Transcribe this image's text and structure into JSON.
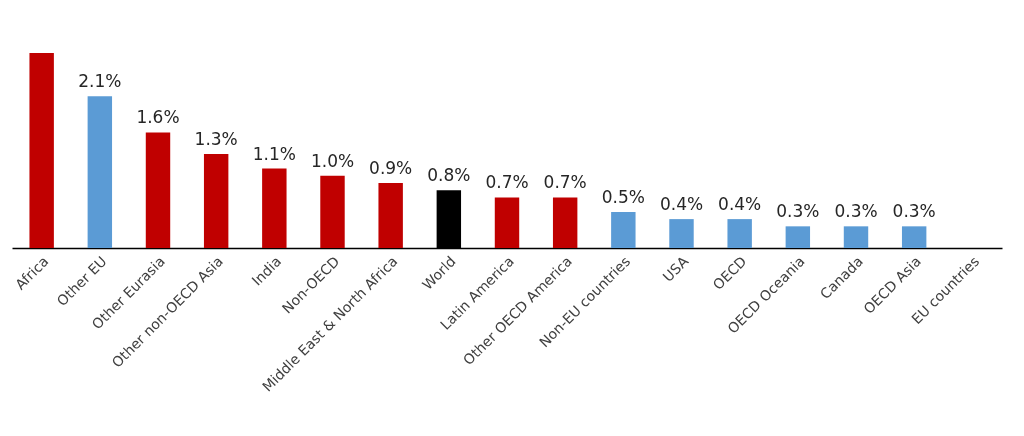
{
  "chart_data": {
    "type": "bar",
    "categories": [
      "Africa",
      "Other EU",
      "Other Eurasia",
      "Other non-OECD Asia",
      "India",
      "Non-OECD",
      "Middle East & North Africa",
      "World",
      "Latin America",
      "Other OECD America",
      "Non-EU countries",
      "USA",
      "OECD",
      "OECD Oceania",
      "Canada",
      "OECD Asia",
      "EU countries"
    ],
    "values": [
      2.7,
      2.1,
      1.6,
      1.3,
      1.1,
      1.0,
      0.9,
      0.8,
      0.7,
      0.7,
      0.5,
      0.4,
      0.4,
      0.3,
      0.3,
      0.3,
      null
    ],
    "value_labels": [
      null,
      "2.1%",
      "1.6%",
      "1.3%",
      "1.1%",
      "1.0%",
      "0.9%",
      "0.8%",
      "0.7%",
      "0.7%",
      "0.5%",
      "0.4%",
      "0.4%",
      "0.3%",
      "0.3%",
      "0.3%",
      null
    ],
    "colors": [
      "#c00000",
      "#5b9bd5",
      "#c00000",
      "#c00000",
      "#c00000",
      "#c00000",
      "#c00000",
      "#000000",
      "#c00000",
      "#c00000",
      "#5b9bd5",
      "#5b9bd5",
      "#5b9bd5",
      "#5b9bd5",
      "#5b9bd5",
      "#5b9bd5",
      "#5b9bd5"
    ]
  }
}
